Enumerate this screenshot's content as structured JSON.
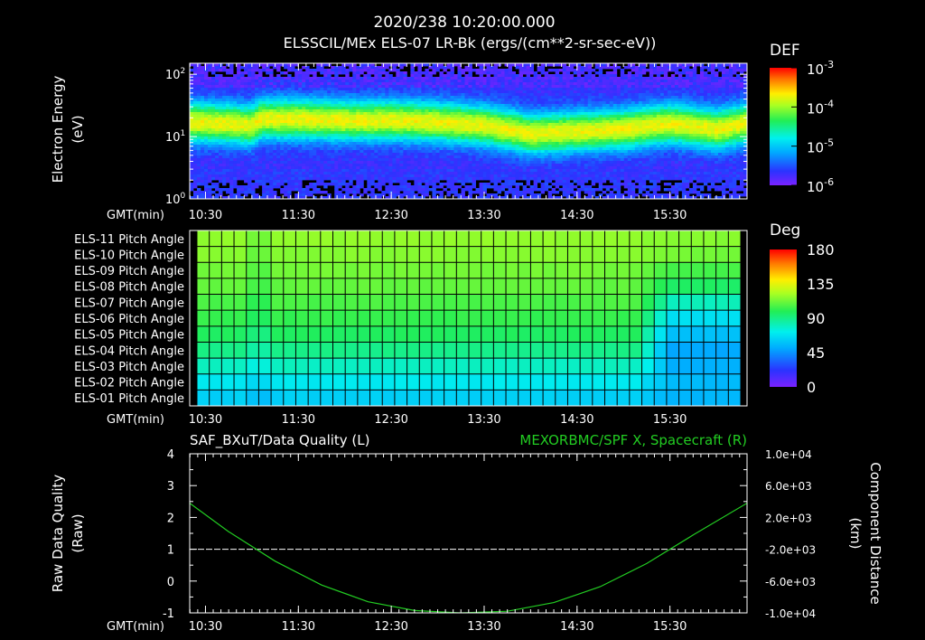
{
  "header": {
    "title": "2020/238 10:20:00.000",
    "subtitle": "ELSSCIL/MEx ELS-07 LR-Bk  (ergs/(cm**2-sr-sec-eV))"
  },
  "axis_common": {
    "gmt_label": "GMT(min)",
    "time_ticks": [
      "10:30",
      "11:30",
      "12:30",
      "13:30",
      "14:30",
      "15:30"
    ]
  },
  "colors": {
    "background": "#000000",
    "foreground": "#ffffff",
    "right_trace": "#22cc22",
    "left_trace": "#ffffff"
  },
  "chart_data": [
    {
      "type": "heatmap",
      "name": "electron-energy-spectrogram",
      "ylabel": [
        "Electron Energy",
        "(eV)"
      ],
      "yscale": "log",
      "ylim": [
        1,
        150
      ],
      "ytick_labels": [
        {
          "base": "10",
          "exp": "0",
          "value": 1
        },
        {
          "base": "10",
          "exp": "1",
          "value": 10
        },
        {
          "base": "10",
          "exp": "2",
          "value": 100
        }
      ],
      "colorbar": {
        "title": "DEF",
        "scale": "log",
        "range": [
          1e-06,
          0.001
        ],
        "tick_labels": [
          {
            "base": "10",
            "exp": "-3"
          },
          {
            "base": "10",
            "exp": "-4"
          },
          {
            "base": "10",
            "exp": "-5"
          },
          {
            "base": "10",
            "exp": "-6"
          }
        ]
      },
      "x_range_min": [
        10.33,
        16.33
      ],
      "peak_energy_ev": [
        {
          "t": 10.33,
          "e": 17
        },
        {
          "t": 10.75,
          "e": 16
        },
        {
          "t": 11.0,
          "e": 15
        },
        {
          "t": 11.1,
          "e": 19
        },
        {
          "t": 11.5,
          "e": 19
        },
        {
          "t": 12.0,
          "e": 18
        },
        {
          "t": 12.5,
          "e": 18
        },
        {
          "t": 13.0,
          "e": 17
        },
        {
          "t": 13.5,
          "e": 15
        },
        {
          "t": 14.0,
          "e": 11
        },
        {
          "t": 14.5,
          "e": 12
        },
        {
          "t": 15.0,
          "e": 13
        },
        {
          "t": 15.5,
          "e": 16
        },
        {
          "t": 16.0,
          "e": 13
        },
        {
          "t": 16.33,
          "e": 16
        }
      ]
    },
    {
      "type": "heatmap",
      "name": "pitch-angle",
      "rows": [
        "ELS-11 Pitch Angle",
        "ELS-10 Pitch Angle",
        "ELS-09 Pitch Angle",
        "ELS-08 Pitch Angle",
        "ELS-07 Pitch Angle",
        "ELS-06 Pitch Angle",
        "ELS-05 Pitch Angle",
        "ELS-04 Pitch Angle",
        "ELS-03 Pitch Angle",
        "ELS-02 Pitch Angle",
        "ELS-01 Pitch Angle"
      ],
      "row_values_deg": [
        118,
        116,
        113,
        110,
        106,
        102,
        97,
        90,
        80,
        70,
        62
      ],
      "late_period_delta_deg": [
        -2,
        -3,
        -8,
        -14,
        -25,
        -35,
        -40,
        -40,
        -28,
        -15,
        -8
      ],
      "colorbar": {
        "title": "Deg",
        "range": [
          0,
          180
        ],
        "tick_labels": [
          "180",
          "135",
          "90",
          "45",
          "0"
        ]
      }
    },
    {
      "type": "line",
      "name": "quality-and-distance",
      "left_title": "SAF_BXuT/Data Quality (L)",
      "right_title": "MEXORBMC/SPF X, Spacecraft (R)",
      "left_ylabel": [
        "Raw Data Quality",
        "(Raw)"
      ],
      "right_ylabel": [
        "Component Distance",
        "(km)"
      ],
      "left_ylim": [
        -1,
        4
      ],
      "left_ticks": [
        "4",
        "3",
        "2",
        "1",
        "0",
        "-1"
      ],
      "right_ylim": [
        -10000,
        10000
      ],
      "right_ticks": [
        "1.0e+04",
        "6.0e+03",
        "2.0e+03",
        "-2.0e+03",
        "-6.0e+03",
        "-1.0e+04"
      ],
      "series": [
        {
          "values": [
            {
              "t": 10.33,
              "v": 1
            },
            {
              "t": 16.33,
              "v": 1
            }
          ]
        },
        {
          "values": [
            {
              "t": 10.33,
              "v": 3800
            },
            {
              "t": 10.75,
              "v": 200
            },
            {
              "t": 11.25,
              "v": -3500
            },
            {
              "t": 11.75,
              "v": -6500
            },
            {
              "t": 12.25,
              "v": -8600
            },
            {
              "t": 12.75,
              "v": -9700
            },
            {
              "t": 13.25,
              "v": -10000
            },
            {
              "t": 13.75,
              "v": -9800
            },
            {
              "t": 14.25,
              "v": -8700
            },
            {
              "t": 14.75,
              "v": -6700
            },
            {
              "t": 15.25,
              "v": -3800
            },
            {
              "t": 15.75,
              "v": -200
            },
            {
              "t": 16.33,
              "v": 3800
            }
          ]
        }
      ]
    }
  ]
}
